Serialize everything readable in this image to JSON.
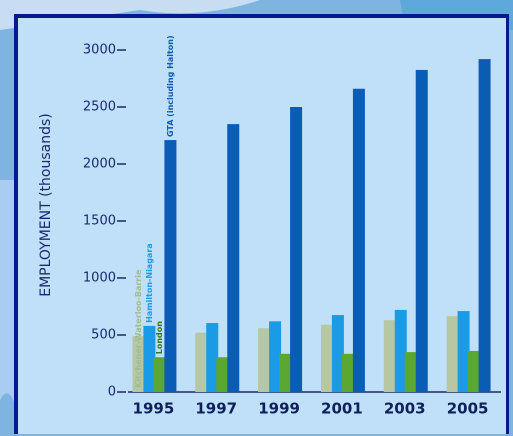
{
  "chart_data": {
    "type": "bar",
    "y_label": "EMPLOYMENT (thousands)",
    "categories": [
      "1995",
      "1997",
      "1999",
      "2001",
      "2003",
      "2005"
    ],
    "series": [
      {
        "name": "Kitchener-Waterloo-Barrie",
        "color": "#b7c7a4",
        "values": [
          490,
          520,
          560,
          590,
          630,
          665
        ]
      },
      {
        "name": "Hamilton-Niagara",
        "color": "#1a9be6",
        "values": [
          580,
          605,
          620,
          675,
          720,
          710
        ]
      },
      {
        "name": "London",
        "color": "#5aa832",
        "values": [
          305,
          305,
          335,
          335,
          350,
          360
        ]
      },
      {
        "name": "GTA (including Halton)",
        "color": "#0a5cb4",
        "values": [
          2210,
          2350,
          2500,
          2660,
          2825,
          2920
        ]
      }
    ],
    "ylim": [
      0,
      3000
    ],
    "yticks": [
      0,
      500,
      1000,
      1500,
      2000,
      2500,
      3000
    ]
  }
}
